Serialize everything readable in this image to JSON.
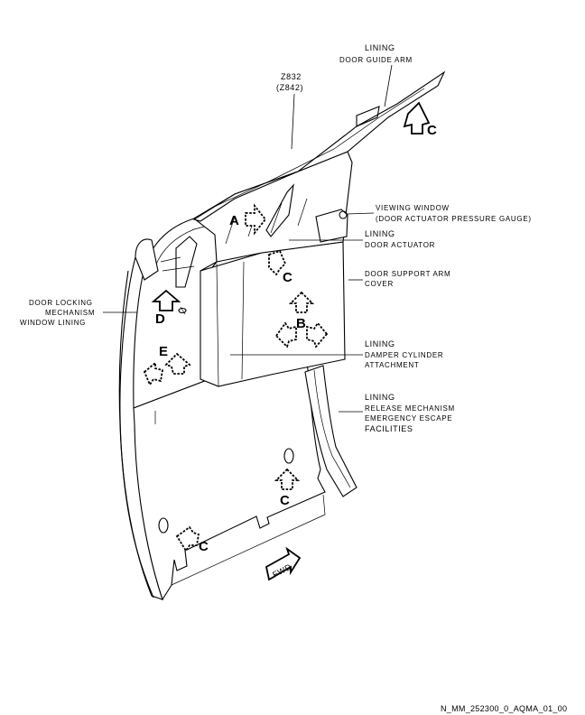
{
  "labels": {
    "lining_guide_1": "LINING",
    "lining_guide_2": "DOOR GUIDE ARM",
    "zone_main": "Z832",
    "zone_alt": "(Z842)",
    "viewing_1": "VIEWING WINDOW",
    "viewing_2": "(DOOR ACTUATOR PRESSURE GAUGE)",
    "actuator_1": "LINING",
    "actuator_2": "DOOR ACTUATOR",
    "support_1": "DOOR SUPPORT ARM",
    "support_2": "COVER",
    "locking_1": "DOOR LOCKING",
    "locking_2": "MECHANISM",
    "locking_3": "WINDOW LINING",
    "damper_1": "LINING",
    "damper_2": "DAMPER CYLINDER",
    "damper_3": "ATTACHMENT",
    "release_1": "LINING",
    "release_2": "RELEASE MECHANISM",
    "release_3": "EMERGENCY ESCAPE",
    "release_4": "FACILITIES",
    "fwd": "FWD"
  },
  "view_letters": {
    "a": "A",
    "b": "B",
    "c": "C",
    "d": "D",
    "e": "E"
  },
  "reference": "N_MM_252300_0_AQMA_01_00"
}
